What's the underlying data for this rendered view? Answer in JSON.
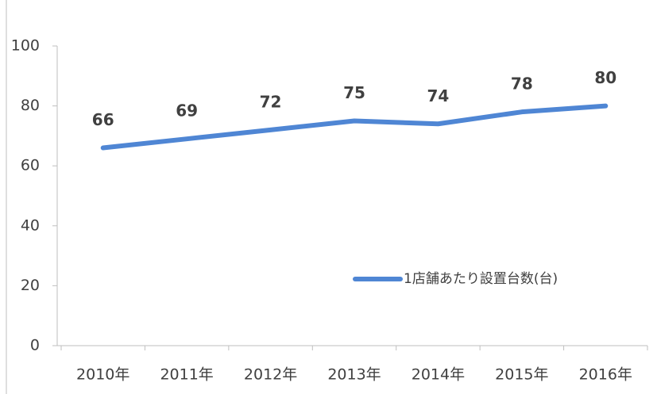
{
  "chart_data": {
    "type": "line",
    "categories": [
      "2010年",
      "2011年",
      "2012年",
      "2013年",
      "2014年",
      "2015年",
      "2016年"
    ],
    "series": [
      {
        "name": "1店舗あたり設置台数(台)",
        "color": "#4f86d4",
        "values": [
          66,
          69,
          72,
          75,
          74,
          78,
          80
        ]
      }
    ],
    "ylim": [
      0,
      100
    ],
    "yticks": [
      0,
      20,
      40,
      60,
      80,
      100
    ],
    "data_labels": true,
    "legend": "lower right"
  }
}
